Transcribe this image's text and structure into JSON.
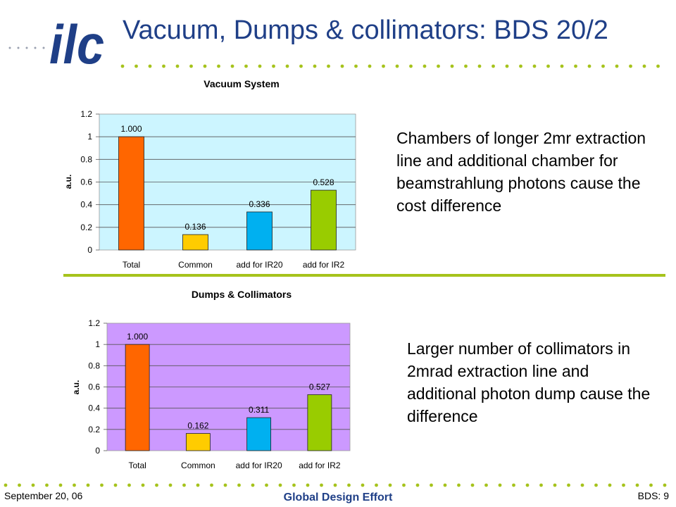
{
  "slide": {
    "title": "Vacuum, Dumps & collimators: BDS 20/2",
    "logo_text": "ilc",
    "notes": [
      "Chambers of longer 2mr extraction line and additional chamber for beamstrahlung photons cause the cost difference",
      "Larger number of collimators in 2mrad extraction line and additional photon dump cause the difference"
    ],
    "footer": {
      "date": "September 20, 06",
      "center": "Global Design Effort",
      "page": "BDS: 9"
    },
    "colors": {
      "title": "#1f3f87",
      "accent_green": "#a6c31c",
      "logo_blue": "#1f3f87"
    }
  },
  "chart_data": [
    {
      "type": "bar",
      "title": "Vacuum System",
      "ylabel": "a.u.",
      "categories": [
        "Total",
        "Common",
        "add for IR20",
        "add for IR2"
      ],
      "values": [
        1.0,
        0.136,
        0.336,
        0.528
      ],
      "data_labels": [
        "1.000",
        "0.136",
        "0.336",
        "0.528"
      ],
      "bar_colors": [
        "#ff6600",
        "#ffcc00",
        "#00b0f0",
        "#99cc00"
      ],
      "plot_bg": "#ccf5ff",
      "ylim": [
        0,
        1.2
      ],
      "yticks": [
        "0",
        "0.2",
        "0.4",
        "0.6",
        "0.8",
        "1",
        "1.2"
      ],
      "grid": true
    },
    {
      "type": "bar",
      "title": "Dumps & Collimators",
      "ylabel": "a.u.",
      "categories": [
        "Total",
        "Common",
        "add for IR20",
        "add for IR2"
      ],
      "values": [
        1.0,
        0.162,
        0.311,
        0.527
      ],
      "data_labels": [
        "1.000",
        "0.162",
        "0.311",
        "0.527"
      ],
      "bar_colors": [
        "#ff6600",
        "#ffcc00",
        "#00b0f0",
        "#99cc00"
      ],
      "plot_bg": "#cc99ff",
      "ylim": [
        0,
        1.2
      ],
      "yticks": [
        "0",
        "0.2",
        "0.4",
        "0.6",
        "0.8",
        "1",
        "1.2"
      ],
      "grid": true
    }
  ]
}
